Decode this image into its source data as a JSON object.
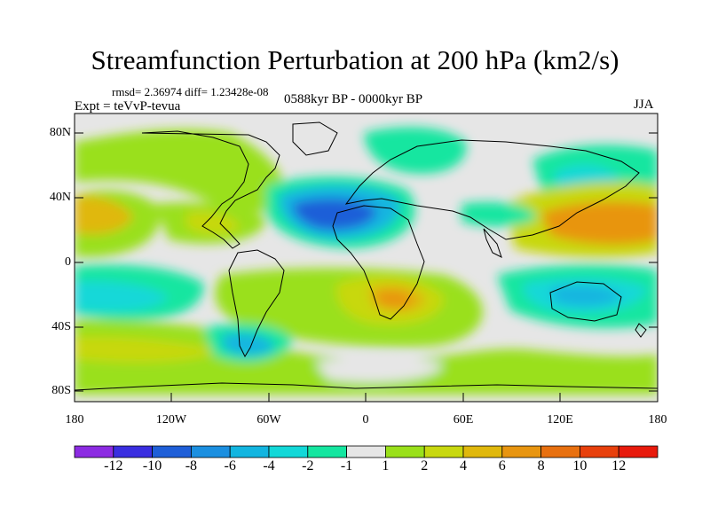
{
  "title": "Streamfunction Perturbation at 200 hPa (km2/s)",
  "stats": "rmsd= 2.36974 diff= 1.23428e-08",
  "experiment": "Expt = teVvP-tevua",
  "period": "0588kyr BP - 0000kyr BP",
  "season": "JJA",
  "axes": {
    "lat_labels": [
      "80N",
      "40N",
      "0",
      "40S",
      "80S"
    ],
    "lon_labels": [
      "180",
      "120W",
      "60W",
      "0",
      "60E",
      "120E",
      "180"
    ]
  },
  "colorbar": {
    "labels": [
      "-12",
      "-10",
      "-8",
      "-6",
      "-4",
      "-2",
      "-1",
      "1",
      "2",
      "4",
      "6",
      "8",
      "10",
      "12"
    ],
    "colors": [
      "#8c2be2",
      "#3a2ee0",
      "#1f5fd8",
      "#1b8fe0",
      "#12b5e0",
      "#12d8d8",
      "#14e6a0",
      "#e6e6e6",
      "#9ae01a",
      "#c8d80f",
      "#e0b80c",
      "#e89510",
      "#e8700f",
      "#e8400c",
      "#e81a0c"
    ]
  },
  "field_colors": {
    "neutral": "#e6e6e6",
    "pos1": "#9ae01a",
    "pos2": "#c8d80f",
    "pos3": "#e0b80c",
    "pos4": "#e89510",
    "neg1": "#14e6a0",
    "neg2": "#12d8d8",
    "neg3": "#12b5e0",
    "neg4": "#1b8fe0",
    "neg5": "#1f5fd8"
  }
}
